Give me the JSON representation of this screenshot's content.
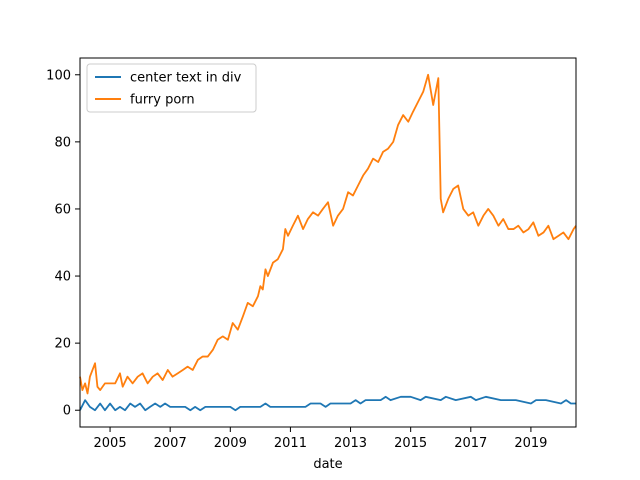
{
  "chart_data": {
    "type": "line",
    "title": "",
    "xlabel": "date",
    "ylabel": "",
    "xlim": [
      2004.0,
      2020.5
    ],
    "ylim": [
      -5,
      105
    ],
    "x_ticks": [
      2005,
      2007,
      2009,
      2011,
      2013,
      2015,
      2017,
      2019
    ],
    "x_tick_labels": [
      "2005",
      "2007",
      "2009",
      "2011",
      "2013",
      "2015",
      "2017",
      "2019"
    ],
    "y_ticks": [
      0,
      20,
      40,
      60,
      80,
      100
    ],
    "y_tick_labels": [
      "0",
      "20",
      "40",
      "60",
      "80",
      "100"
    ],
    "grid": false,
    "legend_position": "upper-left",
    "x_unit": "year (monthly, decimal)",
    "series": [
      {
        "name": "center text in div",
        "color": "#1f77b4",
        "points": [
          [
            2004.0,
            0
          ],
          [
            2004.17,
            3
          ],
          [
            2004.33,
            1
          ],
          [
            2004.5,
            0
          ],
          [
            2004.67,
            2
          ],
          [
            2004.83,
            0
          ],
          [
            2005.0,
            2
          ],
          [
            2005.17,
            0
          ],
          [
            2005.33,
            1
          ],
          [
            2005.5,
            0
          ],
          [
            2005.67,
            2
          ],
          [
            2005.83,
            1
          ],
          [
            2006.0,
            2
          ],
          [
            2006.17,
            0
          ],
          [
            2006.33,
            1
          ],
          [
            2006.5,
            2
          ],
          [
            2006.67,
            1
          ],
          [
            2006.83,
            2
          ],
          [
            2007.0,
            1
          ],
          [
            2007.5,
            1
          ],
          [
            2007.67,
            0
          ],
          [
            2007.83,
            1
          ],
          [
            2008.0,
            0
          ],
          [
            2008.17,
            1
          ],
          [
            2008.5,
            1
          ],
          [
            2009.0,
            1
          ],
          [
            2009.17,
            0
          ],
          [
            2009.33,
            1
          ],
          [
            2010.0,
            1
          ],
          [
            2010.17,
            2
          ],
          [
            2010.33,
            1
          ],
          [
            2011.0,
            1
          ],
          [
            2011.5,
            1
          ],
          [
            2011.67,
            2
          ],
          [
            2012.0,
            2
          ],
          [
            2012.17,
            1
          ],
          [
            2012.33,
            2
          ],
          [
            2013.0,
            2
          ],
          [
            2013.17,
            3
          ],
          [
            2013.33,
            2
          ],
          [
            2013.5,
            3
          ],
          [
            2014.0,
            3
          ],
          [
            2014.17,
            4
          ],
          [
            2014.33,
            3
          ],
          [
            2014.67,
            4
          ],
          [
            2015.0,
            4
          ],
          [
            2015.33,
            3
          ],
          [
            2015.5,
            4
          ],
          [
            2016.0,
            3
          ],
          [
            2016.17,
            4
          ],
          [
            2016.5,
            3
          ],
          [
            2017.0,
            4
          ],
          [
            2017.17,
            3
          ],
          [
            2017.5,
            4
          ],
          [
            2018.0,
            3
          ],
          [
            2018.5,
            3
          ],
          [
            2019.0,
            2
          ],
          [
            2019.17,
            3
          ],
          [
            2019.5,
            3
          ],
          [
            2020.0,
            2
          ],
          [
            2020.17,
            3
          ],
          [
            2020.33,
            2
          ],
          [
            2020.5,
            2
          ]
        ]
      },
      {
        "name": "furry porn",
        "color": "#ff7f0e",
        "points": [
          [
            2004.0,
            10
          ],
          [
            2004.08,
            6
          ],
          [
            2004.17,
            8
          ],
          [
            2004.25,
            5
          ],
          [
            2004.33,
            10
          ],
          [
            2004.5,
            14
          ],
          [
            2004.58,
            7
          ],
          [
            2004.67,
            6
          ],
          [
            2004.83,
            8
          ],
          [
            2005.0,
            8
          ],
          [
            2005.17,
            8
          ],
          [
            2005.33,
            11
          ],
          [
            2005.42,
            7
          ],
          [
            2005.58,
            10
          ],
          [
            2005.75,
            8
          ],
          [
            2005.92,
            10
          ],
          [
            2006.08,
            11
          ],
          [
            2006.25,
            8
          ],
          [
            2006.42,
            10
          ],
          [
            2006.58,
            11
          ],
          [
            2006.75,
            9
          ],
          [
            2006.92,
            12
          ],
          [
            2007.08,
            10
          ],
          [
            2007.25,
            11
          ],
          [
            2007.42,
            12
          ],
          [
            2007.58,
            13
          ],
          [
            2007.75,
            12
          ],
          [
            2007.92,
            15
          ],
          [
            2008.08,
            16
          ],
          [
            2008.25,
            16
          ],
          [
            2008.42,
            18
          ],
          [
            2008.58,
            21
          ],
          [
            2008.75,
            22
          ],
          [
            2008.92,
            21
          ],
          [
            2009.08,
            26
          ],
          [
            2009.25,
            24
          ],
          [
            2009.42,
            28
          ],
          [
            2009.58,
            32
          ],
          [
            2009.75,
            31
          ],
          [
            2009.92,
            34
          ],
          [
            2010.0,
            37
          ],
          [
            2010.08,
            36
          ],
          [
            2010.17,
            42
          ],
          [
            2010.25,
            40
          ],
          [
            2010.42,
            44
          ],
          [
            2010.58,
            45
          ],
          [
            2010.75,
            48
          ],
          [
            2010.83,
            54
          ],
          [
            2010.92,
            52
          ],
          [
            2011.08,
            55
          ],
          [
            2011.25,
            58
          ],
          [
            2011.42,
            54
          ],
          [
            2011.58,
            57
          ],
          [
            2011.75,
            59
          ],
          [
            2011.92,
            58
          ],
          [
            2012.08,
            60
          ],
          [
            2012.25,
            62
          ],
          [
            2012.42,
            55
          ],
          [
            2012.58,
            58
          ],
          [
            2012.75,
            60
          ],
          [
            2012.92,
            65
          ],
          [
            2013.08,
            64
          ],
          [
            2013.25,
            67
          ],
          [
            2013.42,
            70
          ],
          [
            2013.58,
            72
          ],
          [
            2013.75,
            75
          ],
          [
            2013.92,
            74
          ],
          [
            2014.08,
            77
          ],
          [
            2014.25,
            78
          ],
          [
            2014.42,
            80
          ],
          [
            2014.58,
            85
          ],
          [
            2014.75,
            88
          ],
          [
            2014.92,
            86
          ],
          [
            2015.08,
            89
          ],
          [
            2015.25,
            92
          ],
          [
            2015.42,
            95
          ],
          [
            2015.58,
            100
          ],
          [
            2015.75,
            91
          ],
          [
            2015.92,
            99
          ],
          [
            2016.0,
            63
          ],
          [
            2016.08,
            59
          ],
          [
            2016.25,
            63
          ],
          [
            2016.42,
            66
          ],
          [
            2016.58,
            67
          ],
          [
            2016.75,
            60
          ],
          [
            2016.92,
            58
          ],
          [
            2017.08,
            59
          ],
          [
            2017.25,
            55
          ],
          [
            2017.42,
            58
          ],
          [
            2017.58,
            60
          ],
          [
            2017.75,
            58
          ],
          [
            2017.92,
            55
          ],
          [
            2018.08,
            57
          ],
          [
            2018.25,
            54
          ],
          [
            2018.42,
            54
          ],
          [
            2018.58,
            55
          ],
          [
            2018.75,
            53
          ],
          [
            2018.92,
            54
          ],
          [
            2019.08,
            56
          ],
          [
            2019.25,
            52
          ],
          [
            2019.42,
            53
          ],
          [
            2019.58,
            55
          ],
          [
            2019.75,
            51
          ],
          [
            2019.92,
            52
          ],
          [
            2020.08,
            53
          ],
          [
            2020.25,
            51
          ],
          [
            2020.42,
            54
          ],
          [
            2020.5,
            55
          ]
        ]
      }
    ]
  }
}
